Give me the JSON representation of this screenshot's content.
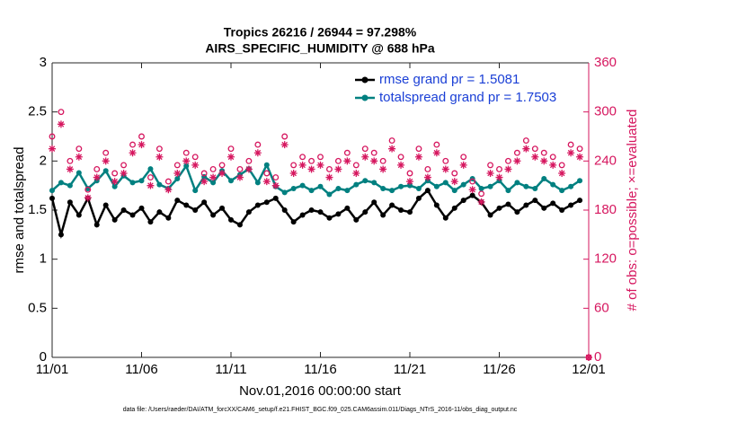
{
  "chart_data": {
    "type": "line",
    "title": [
      "Tropics 26216 / 26944 = 97.298%",
      "AIRS_SPECIFIC_HUMIDITY @ 688 hPa"
    ],
    "xlabel": "Nov.01,2016 00:00:00 start",
    "ylabel": "rmse and totalspread",
    "y2label": "# of obs: o=possible; ×=evaluated",
    "footnote": "data file: /Users/raeder/DAI/ATM_forcXX/CAM6_setup/f.e21.FHIST_BGC.f09_025.CAM6assim.011/Diags_NTrS_2016-11/obs_diag_output.nc",
    "legend": "upper right",
    "legend_color": "#1a3fd6",
    "xlim": [
      0,
      30
    ],
    "xticks": [
      {
        "value": 0,
        "label": "11/01"
      },
      {
        "value": 5,
        "label": "11/06"
      },
      {
        "value": 10,
        "label": "11/11"
      },
      {
        "value": 15,
        "label": "11/16"
      },
      {
        "value": 20,
        "label": "11/21"
      },
      {
        "value": 25,
        "label": "11/26"
      },
      {
        "value": 30,
        "label": "12/01"
      }
    ],
    "ylim": [
      0,
      3
    ],
    "yticks": [
      0,
      0.5,
      1,
      1.5,
      2,
      2.5,
      3
    ],
    "y2lim": [
      0,
      360
    ],
    "y2ticks": [
      0,
      60,
      120,
      180,
      240,
      300,
      360
    ],
    "y2color": "#d6175f",
    "x": [
      0,
      0.5,
      1,
      1.5,
      2,
      2.5,
      3,
      3.5,
      4,
      4.5,
      5,
      5.5,
      6,
      6.5,
      7,
      7.5,
      8,
      8.5,
      9,
      9.5,
      10,
      10.5,
      11,
      11.5,
      12,
      12.5,
      13,
      13.5,
      14,
      14.5,
      15,
      15.5,
      16,
      16.5,
      17,
      17.5,
      18,
      18.5,
      19,
      19.5,
      20,
      20.5,
      21,
      21.5,
      22,
      22.5,
      23,
      23.5,
      24,
      24.5,
      25,
      25.5,
      26,
      26.5,
      27,
      27.5,
      28,
      28.5,
      29,
      29.5,
      30
    ],
    "series": [
      {
        "name": "rmse grand pr = 1.5081",
        "color": "#000000",
        "marker": "dot",
        "connected": true,
        "axis": "y",
        "values": [
          1.62,
          1.25,
          1.58,
          1.45,
          1.62,
          1.35,
          1.55,
          1.4,
          1.5,
          1.45,
          1.52,
          1.38,
          1.48,
          1.42,
          1.6,
          1.55,
          1.5,
          1.58,
          1.45,
          1.52,
          1.4,
          1.35,
          1.48,
          1.55,
          1.58,
          1.62,
          1.5,
          1.38,
          1.45,
          1.5,
          1.48,
          1.42,
          1.46,
          1.52,
          1.4,
          1.48,
          1.58,
          1.45,
          1.55,
          1.5,
          1.48,
          1.62,
          1.7,
          1.55,
          1.42,
          1.52,
          1.6,
          1.65,
          1.58,
          1.45,
          1.52,
          1.56,
          1.48,
          1.55,
          1.6,
          1.52,
          1.57,
          1.5,
          1.55,
          1.6,
          null
        ]
      },
      {
        "name": "totalspread grand pr = 1.7503",
        "color": "#008080",
        "marker": "dot",
        "connected": true,
        "axis": "y",
        "values": [
          1.7,
          1.78,
          1.75,
          1.88,
          1.72,
          1.8,
          1.9,
          1.74,
          1.85,
          1.78,
          1.8,
          1.92,
          1.76,
          1.72,
          1.82,
          1.95,
          1.7,
          1.84,
          1.78,
          1.9,
          1.8,
          1.86,
          1.92,
          1.78,
          1.96,
          1.74,
          1.68,
          1.72,
          1.75,
          1.7,
          1.74,
          1.66,
          1.72,
          1.7,
          1.76,
          1.8,
          1.78,
          1.72,
          1.7,
          1.74,
          1.75,
          1.72,
          1.8,
          1.74,
          1.78,
          1.7,
          1.76,
          1.82,
          1.72,
          1.74,
          1.8,
          1.7,
          1.78,
          1.74,
          1.72,
          1.82,
          1.76,
          1.7,
          1.74,
          1.8,
          null
        ]
      },
      {
        "color": "#d6175f",
        "marker": "circle",
        "connected": false,
        "axis": "y2",
        "values": [
          270,
          300,
          240,
          255,
          205,
          230,
          250,
          225,
          235,
          260,
          270,
          220,
          255,
          215,
          235,
          250,
          245,
          225,
          230,
          235,
          255,
          230,
          240,
          260,
          225,
          220,
          270,
          235,
          245,
          240,
          245,
          230,
          240,
          250,
          235,
          255,
          250,
          240,
          265,
          245,
          225,
          255,
          230,
          260,
          240,
          225,
          245,
          215,
          200,
          235,
          230,
          240,
          250,
          265,
          255,
          250,
          245,
          235,
          260,
          255,
          0
        ]
      },
      {
        "color": "#d6175f",
        "marker": "asterisk",
        "connected": false,
        "axis": "y2",
        "values": [
          255,
          285,
          230,
          245,
          195,
          220,
          240,
          215,
          225,
          250,
          260,
          210,
          245,
          205,
          225,
          240,
          235,
          215,
          220,
          225,
          245,
          220,
          230,
          250,
          215,
          210,
          260,
          225,
          235,
          230,
          235,
          220,
          230,
          240,
          225,
          245,
          240,
          230,
          255,
          235,
          215,
          245,
          220,
          250,
          230,
          215,
          235,
          205,
          190,
          225,
          220,
          230,
          240,
          255,
          245,
          240,
          235,
          225,
          250,
          245,
          0
        ]
      }
    ]
  }
}
